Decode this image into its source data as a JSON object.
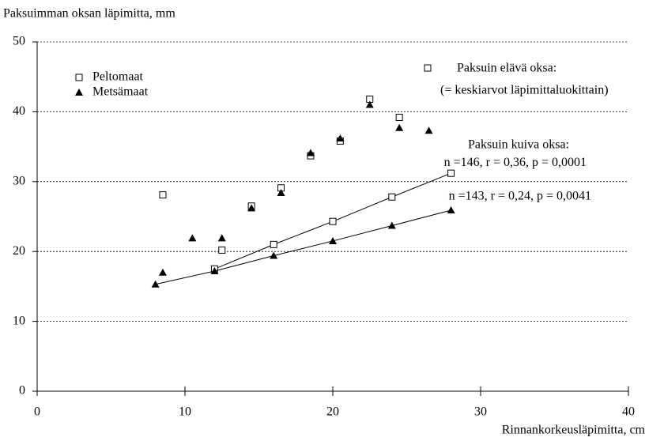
{
  "chart_data": {
    "type": "scatter",
    "title": "Paksuimman oksan läpimitta, mm",
    "x_label": "Rinnankorkeusläpimitta, cm",
    "xlim": [
      0,
      40
    ],
    "xticks": [
      0,
      10,
      20,
      30,
      40
    ],
    "ylim": [
      0,
      50
    ],
    "yticks": [
      0,
      10,
      20,
      30,
      40,
      50
    ],
    "grid": true,
    "series": [
      {
        "name": "Peltomaat",
        "color": "#000000",
        "marker": "square",
        "x": [
          8.5,
          12.5,
          14.5,
          16.5,
          18.5,
          20.5,
          22.5,
          24.5
        ],
        "values": [
          28.1,
          20.2,
          26.5,
          29.1,
          33.7,
          35.8,
          41.8,
          39.2
        ]
      },
      {
        "name": "Metsämaat",
        "color": "#000000",
        "marker": "triangle",
        "x": [
          8.5,
          10.5,
          12.5,
          14.5,
          16.5,
          18.5,
          20.5,
          22.5,
          24.5,
          26.5
        ],
        "values": [
          17,
          21.9,
          21.9,
          26.2,
          28.4,
          34.1,
          36.2,
          41,
          37.7,
          37.3
        ]
      }
    ],
    "lines": [
      {
        "label": "n =146, r = 0,36, p = 0,0001",
        "marker": "square",
        "x": [
          12,
          16,
          20,
          24,
          28
        ],
        "values": [
          17.5,
          21,
          24.3,
          27.8,
          31.2
        ]
      },
      {
        "label": "n =143, r = 0,24, p = 0,0041",
        "marker": "triangle",
        "x": [
          8,
          12,
          16,
          20,
          24,
          28
        ],
        "values": [
          15.3,
          17.2,
          19.4,
          21.5,
          23.7,
          25.9
        ]
      }
    ],
    "annotations": [
      "Paksuin elävä oksa:",
      "(= keskiarvot läpimittaluokittain)",
      "Paksuin kuiva oksa:"
    ]
  }
}
